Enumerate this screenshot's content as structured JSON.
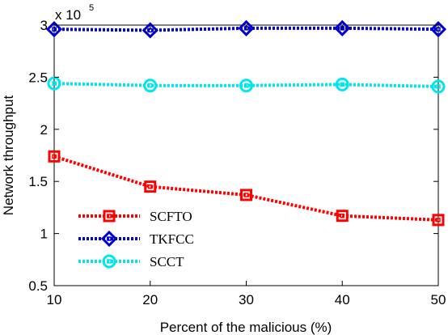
{
  "chart_data": {
    "type": "line",
    "xlabel": "Percent of the malicious (%)",
    "ylabel": "Network throughput",
    "y_multiplier": {
      "base": "x 10",
      "exponent": "5"
    },
    "x": [
      10,
      20,
      30,
      40,
      50
    ],
    "xlim": [
      10,
      50
    ],
    "ylim": [
      0.5,
      3
    ],
    "x_ticks": [
      10,
      20,
      30,
      40,
      50
    ],
    "y_ticks": [
      0.5,
      1,
      1.5,
      2,
      2.5,
      3
    ],
    "y_tick_labels": [
      "0.5",
      "1",
      "1.5",
      "2",
      "2.5",
      "3"
    ],
    "grid": false,
    "legend_position": "bottom-left",
    "series": [
      {
        "name": "SCFTO",
        "values": [
          1.74,
          1.45,
          1.37,
          1.17,
          1.13
        ],
        "color": "#ff0000",
        "marker": "square"
      },
      {
        "name": "TKFCC",
        "values": [
          2.96,
          2.95,
          2.97,
          2.97,
          2.96
        ],
        "color": "#0000cc",
        "marker": "diamond"
      },
      {
        "name": "SCCT",
        "values": [
          2.44,
          2.42,
          2.42,
          2.43,
          2.41
        ],
        "color": "#00e5ee",
        "marker": "circle"
      }
    ]
  }
}
